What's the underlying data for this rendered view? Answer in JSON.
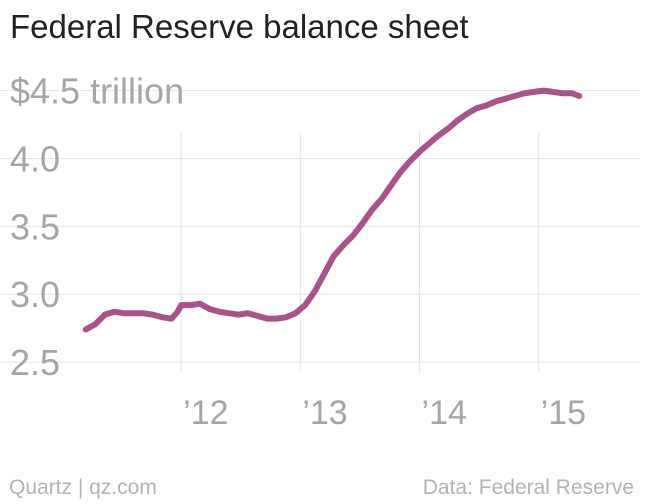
{
  "title": "Federal Reserve balance sheet",
  "footer": {
    "left": "Quartz | qz.com",
    "right": "Data: Federal Reserve"
  },
  "colors": {
    "line": "#a8548a",
    "grid": "#e6e6e6",
    "tick_text": "#a6a6a6",
    "title": "#222222",
    "footer": "#b3b3b3"
  },
  "chart_data": {
    "type": "line",
    "title": "Federal Reserve balance sheet",
    "xlabel": "",
    "ylabel": "",
    "unit": "trillion",
    "grid": true,
    "legend": "none",
    "ylim": [
      2.25,
      4.6
    ],
    "xlim": [
      2011.0,
      2015.85
    ],
    "yticks": [
      {
        "value": 4.5,
        "label": "$4.5 trillion"
      },
      {
        "value": 4.0,
        "label": "4.0"
      },
      {
        "value": 3.5,
        "label": "3.5"
      },
      {
        "value": 3.0,
        "label": "3.0"
      },
      {
        "value": 2.5,
        "label": "2.5"
      }
    ],
    "xticks": [
      {
        "value": 2012,
        "label": "’12"
      },
      {
        "value": 2013,
        "label": "’13"
      },
      {
        "value": 2014,
        "label": "’14"
      },
      {
        "value": 2015,
        "label": "’15"
      }
    ],
    "series": [
      {
        "x": [
          2011.2,
          2011.28,
          2011.36,
          2011.44,
          2011.52,
          2011.6,
          2011.68,
          2011.76,
          2011.84,
          2011.92,
          2011.97,
          2012.0,
          2012.08,
          2012.16,
          2012.24,
          2012.32,
          2012.4,
          2012.48,
          2012.56,
          2012.64,
          2012.72,
          2012.8,
          2012.88,
          2012.96,
          2013.04,
          2013.12,
          2013.2,
          2013.28,
          2013.36,
          2013.44,
          2013.52,
          2013.6,
          2013.68,
          2013.76,
          2013.84,
          2013.92,
          2014.0,
          2014.08,
          2014.16,
          2014.24,
          2014.32,
          2014.4,
          2014.48,
          2014.56,
          2014.64,
          2014.72,
          2014.8,
          2014.88,
          2014.96,
          2015.04,
          2015.12,
          2015.2,
          2015.28,
          2015.34
        ],
        "values": [
          2.74,
          2.78,
          2.85,
          2.87,
          2.86,
          2.86,
          2.86,
          2.85,
          2.83,
          2.82,
          2.87,
          2.92,
          2.92,
          2.93,
          2.89,
          2.87,
          2.86,
          2.85,
          2.86,
          2.84,
          2.82,
          2.82,
          2.83,
          2.86,
          2.92,
          3.02,
          3.15,
          3.28,
          3.36,
          3.43,
          3.52,
          3.62,
          3.7,
          3.8,
          3.9,
          3.98,
          4.05,
          4.11,
          4.17,
          4.22,
          4.28,
          4.33,
          4.37,
          4.39,
          4.42,
          4.44,
          4.46,
          4.48,
          4.49,
          4.5,
          4.49,
          4.48,
          4.48,
          4.46
        ]
      }
    ]
  }
}
